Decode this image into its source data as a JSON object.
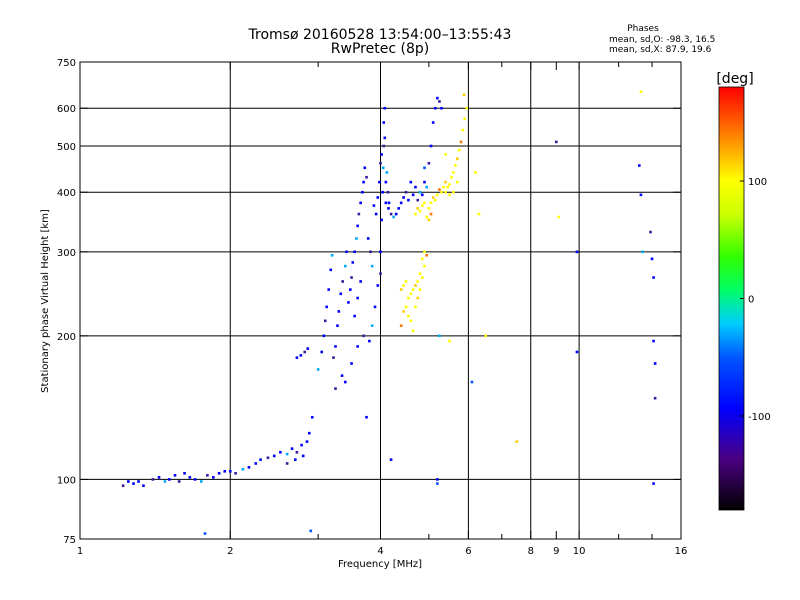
{
  "chart_data": {
    "type": "scatter",
    "title": "Tromsø 20160528 13:54:00–13:55:43",
    "subtitle": "RwPretec (8p)",
    "annotation": {
      "heading": "Phases",
      "line1": "mean, sd,O: -98.3, 16.5",
      "line2": "mean, sd,X:  87.9, 19.6"
    },
    "xlabel": "Frequency [MHz]",
    "ylabel": "Stationary phase Virtual Height [km]",
    "x_scale": "log",
    "y_scale": "log",
    "xlim": [
      1,
      16
    ],
    "ylim": [
      75,
      750
    ],
    "x_ticks": [
      1,
      2,
      4,
      6,
      8,
      9,
      10,
      16
    ],
    "x_tick_labels": [
      "1",
      "2",
      "4",
      "6",
      "8",
      "9",
      "10",
      "16"
    ],
    "x_minor_ticks": [
      3,
      5,
      7,
      12,
      14
    ],
    "x_grid": [
      2,
      4,
      6,
      8,
      10
    ],
    "y_ticks": [
      75,
      100,
      200,
      300,
      400,
      500,
      600,
      750
    ],
    "y_tick_labels": [
      "75",
      "100",
      "200",
      "300",
      "400",
      "500",
      "600",
      "750"
    ],
    "y_grid": [
      100,
      200,
      300,
      400,
      500,
      600
    ],
    "grid": true,
    "colorbar": {
      "label": "[deg]",
      "range": [
        -180,
        180
      ],
      "ticks": [
        100,
        0,
        -100
      ],
      "tick_labels": [
        "100",
        "0",
        "-100"
      ]
    },
    "series": [
      {
        "mode": "O",
        "phase_color_deg": -100,
        "points": [
          [
            1.22,
            97
          ],
          [
            1.25,
            99
          ],
          [
            1.28,
            98
          ],
          [
            1.31,
            99
          ],
          [
            1.34,
            97
          ],
          [
            1.4,
            100
          ],
          [
            1.44,
            101
          ],
          [
            1.48,
            99
          ],
          [
            1.51,
            100
          ],
          [
            1.55,
            102
          ],
          [
            1.58,
            99
          ],
          [
            1.62,
            103
          ],
          [
            1.66,
            101
          ],
          [
            1.7,
            100
          ],
          [
            1.75,
            99
          ],
          [
            1.8,
            102
          ],
          [
            1.85,
            101
          ],
          [
            1.9,
            103
          ],
          [
            1.95,
            104
          ],
          [
            2.0,
            104
          ],
          [
            2.05,
            103
          ],
          [
            2.12,
            105
          ],
          [
            2.18,
            106
          ],
          [
            2.25,
            108
          ],
          [
            2.3,
            110
          ],
          [
            2.38,
            111
          ],
          [
            2.45,
            112
          ],
          [
            2.52,
            114
          ],
          [
            2.6,
            113
          ],
          [
            2.66,
            116
          ],
          [
            2.72,
            114
          ],
          [
            2.78,
            118
          ],
          [
            2.85,
            120
          ],
          [
            2.88,
            125
          ],
          [
            2.92,
            135
          ],
          [
            2.6,
            108
          ],
          [
            2.7,
            110
          ],
          [
            2.8,
            112
          ],
          [
            2.72,
            180
          ],
          [
            2.77,
            182
          ],
          [
            2.82,
            185
          ],
          [
            2.86,
            188
          ],
          [
            3.0,
            170
          ],
          [
            3.05,
            185
          ],
          [
            3.08,
            200
          ],
          [
            3.1,
            215
          ],
          [
            3.12,
            230
          ],
          [
            3.15,
            250
          ],
          [
            3.18,
            275
          ],
          [
            3.2,
            295
          ],
          [
            3.22,
            180
          ],
          [
            3.25,
            190
          ],
          [
            3.28,
            210
          ],
          [
            3.3,
            225
          ],
          [
            3.33,
            245
          ],
          [
            3.36,
            260
          ],
          [
            3.4,
            280
          ],
          [
            3.42,
            300
          ],
          [
            3.45,
            235
          ],
          [
            3.48,
            250
          ],
          [
            3.5,
            265
          ],
          [
            3.52,
            285
          ],
          [
            3.55,
            300
          ],
          [
            3.58,
            320
          ],
          [
            3.6,
            340
          ],
          [
            3.62,
            360
          ],
          [
            3.65,
            380
          ],
          [
            3.68,
            400
          ],
          [
            3.7,
            420
          ],
          [
            3.72,
            450
          ],
          [
            3.75,
            430
          ],
          [
            3.35,
            165
          ],
          [
            3.4,
            160
          ],
          [
            3.5,
            175
          ],
          [
            3.6,
            190
          ],
          [
            3.7,
            200
          ],
          [
            3.8,
            195
          ],
          [
            3.85,
            210
          ],
          [
            3.9,
            230
          ],
          [
            3.95,
            255
          ],
          [
            4.0,
            270
          ],
          [
            4.0,
            300
          ],
          [
            4.02,
            350
          ],
          [
            4.04,
            400
          ],
          [
            4.05,
            450
          ],
          [
            4.06,
            500
          ],
          [
            4.06,
            560
          ],
          [
            4.08,
            600
          ],
          [
            4.1,
            380
          ],
          [
            4.15,
            370
          ],
          [
            4.2,
            360
          ],
          [
            4.25,
            355
          ],
          [
            4.3,
            360
          ],
          [
            4.35,
            370
          ],
          [
            4.4,
            380
          ],
          [
            4.5,
            400
          ],
          [
            4.6,
            420
          ],
          [
            4.7,
            410
          ],
          [
            4.8,
            400
          ],
          [
            4.9,
            420
          ],
          [
            5.0,
            460
          ],
          [
            5.05,
            500
          ],
          [
            5.1,
            560
          ],
          [
            5.15,
            600
          ],
          [
            5.2,
            630
          ],
          [
            5.25,
            620
          ],
          [
            5.3,
            600
          ],
          [
            4.45,
            390
          ],
          [
            4.55,
            385
          ],
          [
            4.65,
            395
          ],
          [
            4.75,
            385
          ],
          [
            4.85,
            395
          ],
          [
            4.95,
            410
          ],
          [
            3.95,
            390
          ],
          [
            3.98,
            420
          ],
          [
            4.0,
            460
          ],
          [
            4.02,
            480
          ],
          [
            4.08,
            520
          ],
          [
            4.1,
            420
          ],
          [
            4.12,
            440
          ],
          [
            4.14,
            400
          ],
          [
            4.16,
            380
          ],
          [
            3.88,
            375
          ],
          [
            3.92,
            360
          ],
          [
            3.78,
            320
          ],
          [
            3.82,
            300
          ],
          [
            3.85,
            280
          ],
          [
            3.6,
            240
          ],
          [
            3.55,
            220
          ],
          [
            3.65,
            260
          ],
          [
            3.25,
            155
          ],
          [
            3.75,
            135
          ],
          [
            4.2,
            110
          ],
          [
            5.25,
            200
          ],
          [
            5.2,
            100
          ],
          [
            9.0,
            510
          ],
          [
            9.9,
            300
          ],
          [
            9.9,
            185
          ],
          [
            13.2,
            455
          ],
          [
            13.3,
            395
          ],
          [
            13.9,
            330
          ],
          [
            14.0,
            290
          ],
          [
            14.1,
            265
          ],
          [
            14.1,
            195
          ],
          [
            14.2,
            175
          ],
          [
            14.2,
            148
          ],
          [
            14.1,
            98
          ],
          [
            13.4,
            300
          ]
        ]
      },
      {
        "mode": "X",
        "phase_color_deg": 90,
        "points": [
          [
            4.4,
            250
          ],
          [
            4.45,
            255
          ],
          [
            4.5,
            260
          ],
          [
            4.55,
            240
          ],
          [
            4.6,
            245
          ],
          [
            4.65,
            250
          ],
          [
            4.7,
            255
          ],
          [
            4.75,
            260
          ],
          [
            4.8,
            270
          ],
          [
            4.85,
            290
          ],
          [
            4.9,
            300
          ],
          [
            4.4,
            210
          ],
          [
            4.45,
            225
          ],
          [
            4.5,
            230
          ],
          [
            4.55,
            220
          ],
          [
            4.6,
            215
          ],
          [
            4.65,
            205
          ],
          [
            4.7,
            230
          ],
          [
            4.75,
            240
          ],
          [
            4.8,
            250
          ],
          [
            4.85,
            265
          ],
          [
            4.9,
            280
          ],
          [
            4.95,
            295
          ],
          [
            4.7,
            360
          ],
          [
            4.75,
            370
          ],
          [
            4.8,
            365
          ],
          [
            4.85,
            375
          ],
          [
            4.9,
            380
          ],
          [
            5.0,
            370
          ],
          [
            5.05,
            380
          ],
          [
            5.1,
            390
          ],
          [
            5.15,
            385
          ],
          [
            5.2,
            395
          ],
          [
            5.25,
            405
          ],
          [
            5.3,
            400
          ],
          [
            5.35,
            410
          ],
          [
            5.4,
            420
          ],
          [
            5.45,
            410
          ],
          [
            5.5,
            415
          ],
          [
            5.55,
            430
          ],
          [
            5.6,
            440
          ],
          [
            5.65,
            455
          ],
          [
            5.7,
            470
          ],
          [
            5.75,
            490
          ],
          [
            5.8,
            510
          ],
          [
            5.85,
            540
          ],
          [
            5.9,
            570
          ],
          [
            5.95,
            600
          ],
          [
            5.88,
            640
          ],
          [
            5.7,
            420
          ],
          [
            5.6,
            400
          ],
          [
            5.5,
            395
          ],
          [
            5.4,
            400
          ],
          [
            4.95,
            355
          ],
          [
            5.0,
            350
          ],
          [
            5.05,
            360
          ],
          [
            5.5,
            195
          ],
          [
            6.2,
            440
          ],
          [
            6.3,
            360
          ],
          [
            6.5,
            200
          ],
          [
            7.5,
            120
          ],
          [
            9.1,
            355
          ],
          [
            13.3,
            650
          ],
          [
            5.4,
            480
          ]
        ]
      },
      {
        "mode": "other",
        "phase_color_deg": -40,
        "points": [
          [
            1.78,
            77
          ],
          [
            2.9,
            78
          ],
          [
            5.2,
            98
          ],
          [
            6.1,
            160
          ],
          [
            4.9,
            450
          ]
        ]
      }
    ]
  }
}
